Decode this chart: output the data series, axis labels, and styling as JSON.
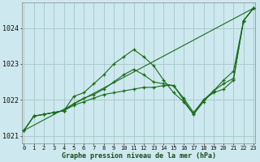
{
  "title": "Graphe pression niveau de la mer (hPa)",
  "bg_color": "#cde8ee",
  "grid_color": "#aacccc",
  "line_color": "#1a6b1a",
  "xlabel_color": "#1a4a1a",
  "xmin": 0,
  "xmax": 23,
  "ymin": 1020.8,
  "ymax": 1024.7,
  "yticks": [
    1021,
    1022,
    1023,
    1024
  ],
  "xticks": [
    0,
    1,
    2,
    3,
    4,
    5,
    6,
    7,
    8,
    9,
    10,
    11,
    12,
    13,
    14,
    15,
    16,
    17,
    18,
    19,
    20,
    21,
    22,
    23
  ],
  "lines": [
    {
      "x": [
        0,
        1,
        2,
        3,
        4,
        5,
        6,
        7,
        8,
        9,
        10,
        11,
        12,
        13,
        14,
        15,
        16,
        17,
        18,
        19,
        20,
        21,
        22,
        23
      ],
      "y": [
        1021.15,
        1021.55,
        1021.6,
        1021.65,
        1021.7,
        1022.1,
        1022.2,
        1022.45,
        1022.7,
        1023.0,
        1023.2,
        1023.4,
        1023.2,
        1022.95,
        1022.55,
        1022.2,
        1021.95,
        1021.6,
        1021.95,
        1022.25,
        1022.55,
        1022.8,
        1024.2,
        1024.55
      ],
      "marker": "+"
    },
    {
      "x": [
        0,
        1,
        2,
        3,
        4,
        5,
        6,
        7,
        8,
        9,
        10,
        11,
        12,
        13,
        14,
        15,
        16,
        17,
        18,
        19,
        20,
        21,
        22,
        23
      ],
      "y": [
        1021.15,
        1021.55,
        1021.6,
        1021.65,
        1021.7,
        1021.85,
        1021.95,
        1022.05,
        1022.15,
        1022.2,
        1022.25,
        1022.3,
        1022.35,
        1022.35,
        1022.4,
        1022.4,
        1022.0,
        1021.6,
        1022.0,
        1022.2,
        1022.3,
        1022.55,
        1024.2,
        1024.55
      ],
      "marker": "+"
    },
    {
      "x": [
        0,
        1,
        2,
        3,
        4,
        5,
        6,
        7,
        8,
        9,
        10,
        11,
        12,
        13,
        14,
        15,
        16,
        17,
        18,
        19,
        20,
        21,
        22,
        23
      ],
      "y": [
        1021.15,
        1021.55,
        1021.6,
        1021.65,
        1021.7,
        1021.9,
        1022.05,
        1022.15,
        1022.3,
        1022.5,
        1022.7,
        1022.85,
        1022.7,
        1022.5,
        1022.45,
        1022.4,
        1022.05,
        1021.65,
        1022.0,
        1022.25,
        1022.45,
        1022.6,
        1024.2,
        1024.55
      ],
      "marker": "+"
    },
    {
      "x": [
        0,
        23
      ],
      "y": [
        1021.15,
        1024.55
      ],
      "marker": null
    }
  ]
}
